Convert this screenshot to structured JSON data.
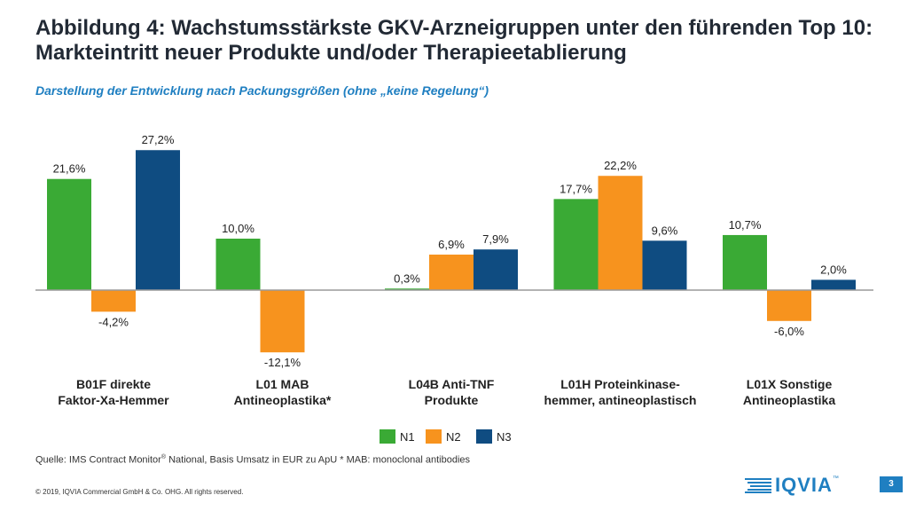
{
  "header": {
    "title": "Abbildung 4: Wachstumsstärkste GKV-Arzneigruppen unter den führenden Top 10: Markteintritt neuer Produkte und/oder Therapieetablierung",
    "subtitle": "Darstellung der Entwicklung nach Packungsgrößen (ohne „keine Regelung“)"
  },
  "chart_data": {
    "type": "bar",
    "categories": [
      [
        "B01F direkte",
        "Faktor-Xa-Hemmer"
      ],
      [
        "L01 MAB",
        "Antineoplastika*"
      ],
      [
        "L04B Anti-TNF",
        "Produkte"
      ],
      [
        "L01H Proteinkinase-",
        "hemmer, antineoplastisch"
      ],
      [
        "L01X Sonstige",
        "Antineoplastika"
      ]
    ],
    "series": [
      {
        "name": "N1",
        "color": "#3aaa35",
        "values": [
          21.6,
          10.0,
          0.3,
          17.7,
          10.7
        ],
        "labels": [
          "21,6%",
          "10,0%",
          "0,3%",
          "17,7%",
          "10,7%"
        ]
      },
      {
        "name": "N2",
        "color": "#f7931e",
        "values": [
          -4.2,
          -12.1,
          6.9,
          22.2,
          -6.0
        ],
        "labels": [
          "-4,2%",
          "-12,1%",
          "6,9%",
          "22,2%",
          "-6,0%"
        ]
      },
      {
        "name": "N3",
        "color": "#0f4c81",
        "values": [
          27.2,
          null,
          7.9,
          9.6,
          2.0
        ],
        "labels": [
          "27,2%",
          "",
          "7,9%",
          "9,6%",
          "2,0%"
        ]
      }
    ],
    "unit": "%",
    "legend_position": "bottom-center",
    "grid": false
  },
  "footer": {
    "source_prefix": "Quelle: IMS Contract Monitor",
    "source_reg": "®",
    "source_suffix": " National, Basis Umsatz in EUR zu ApU    * MAB: monoclonal antibodies",
    "copyright": "© 2019, IQVIA Commercial GmbH & Co. OHG. All rights reserved.",
    "logo_text": "IQVIA",
    "logo_tm": "™",
    "page_number": "3"
  }
}
